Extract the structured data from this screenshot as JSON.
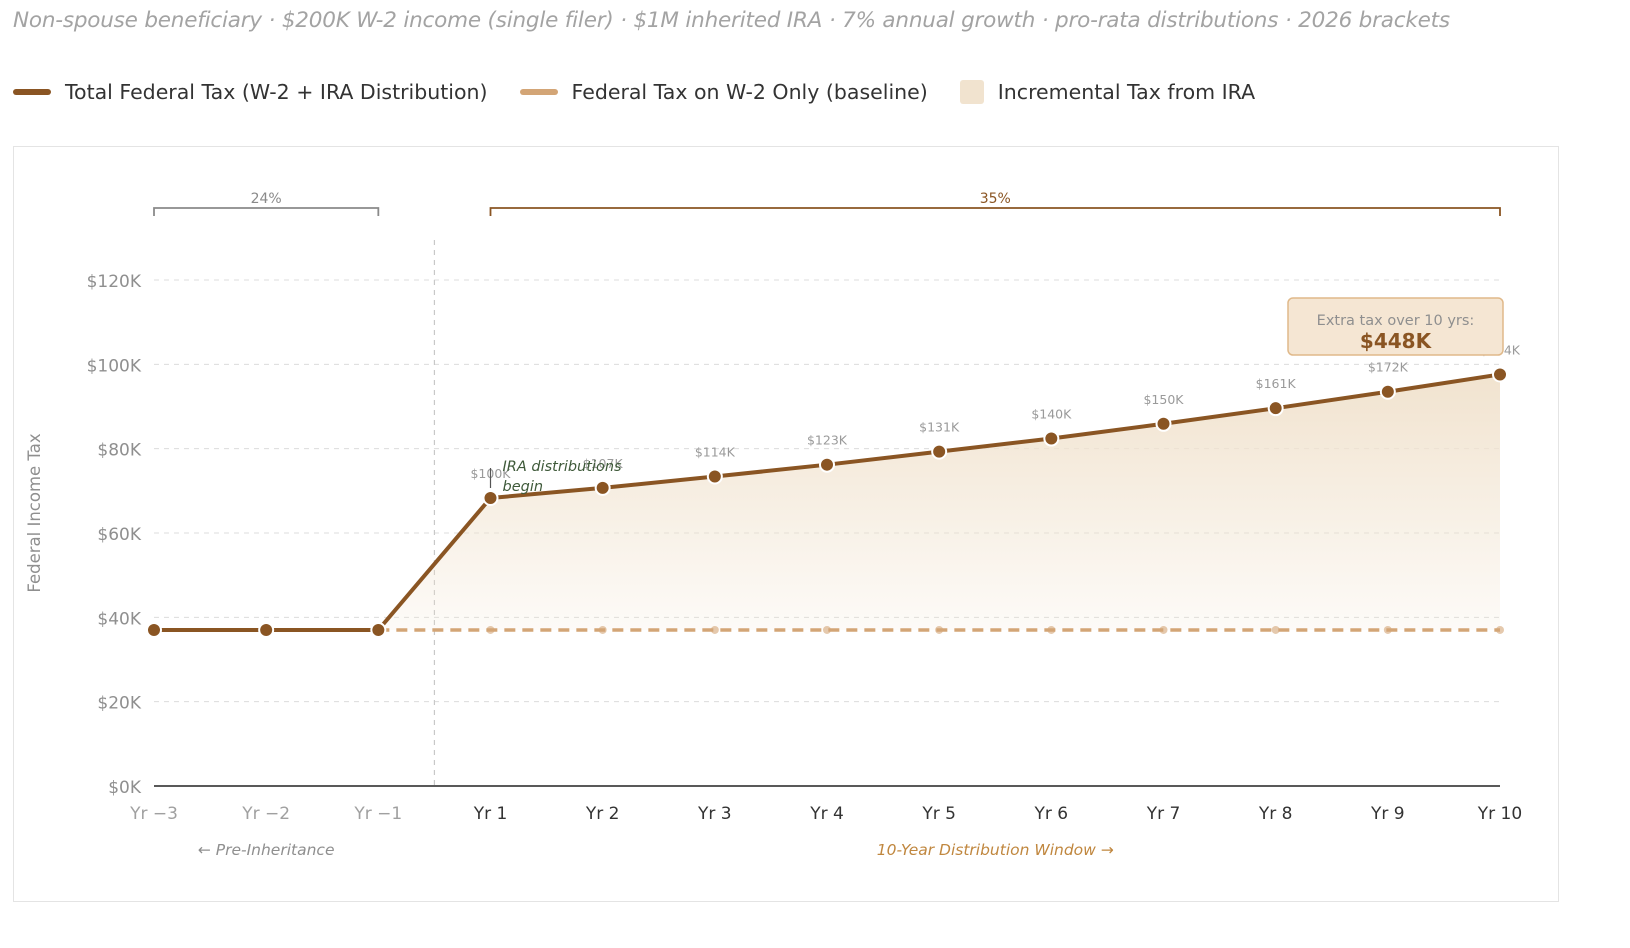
{
  "subtitle": "Non-spouse beneficiary · $200K W-2 income (single filer) · $1M inherited IRA · 7% annual growth · pro-rata distributions · 2026 brackets",
  "legend": [
    {
      "label": "Total Federal Tax (W-2 + IRA Distribution)",
      "color": "#8a5523",
      "kind": "line"
    },
    {
      "label": "Federal Tax on W-2 Only (baseline)",
      "color": "#d3a576",
      "kind": "line"
    },
    {
      "label": "Incremental Tax from IRA",
      "color": "#f1e3cf",
      "kind": "area"
    }
  ],
  "colors": {
    "total": "#8a5523",
    "baseline": "#d3a576",
    "area": "#f1e3cf",
    "bracket_24": "#8a8a8a",
    "bracket_35": "#8a5523",
    "annotation": "#3f5a3a",
    "window_label": "#c0873f",
    "callout_bg": "#f5e6d3",
    "callout_border": "#e0b98a"
  },
  "chart_data": {
    "type": "line",
    "x": [
      "Yr −3",
      "Yr −2",
      "Yr −1",
      "Yr 1",
      "Yr 2",
      "Yr 3",
      "Yr 4",
      "Yr 5",
      "Yr 6",
      "Yr 7",
      "Yr 8",
      "Yr 9",
      "Yr 10"
    ],
    "ylabel": "Federal Income Tax",
    "ylim": [
      0,
      130000
    ],
    "yticks": [
      0,
      20000,
      40000,
      60000,
      80000,
      100000,
      120000
    ],
    "ytick_labels": [
      "$0K",
      "$20K",
      "$40K",
      "$60K",
      "$80K",
      "$100K",
      "$120K"
    ],
    "grid": true,
    "series": [
      {
        "name": "Total Federal Tax (W-2 + IRA Distribution)",
        "values": [
          37000,
          37000,
          37000,
          68300,
          70700,
          73400,
          76200,
          79300,
          82400,
          85900,
          89600,
          93500,
          97600
        ]
      },
      {
        "name": "Federal Tax on W-2 Only (baseline)",
        "values": [
          37000,
          37000,
          37000,
          37000,
          37000,
          37000,
          37000,
          37000,
          37000,
          37000,
          37000,
          37000,
          37000
        ]
      }
    ],
    "point_labels": [
      "",
      "",
      "",
      "$100K",
      "$107K",
      "$114K",
      "$123K",
      "$131K",
      "$140K",
      "$150K",
      "$161K",
      "$172K",
      "$184K"
    ],
    "brackets": [
      {
        "label": "24%",
        "from": "Yr −3",
        "to": "Yr −1"
      },
      {
        "label": "35%",
        "from": "Yr 1",
        "to": "Yr 10"
      }
    ],
    "annotation": "IRA distributions begin",
    "region_labels": [
      "← Pre-Inheritance",
      "10-Year Distribution Window →"
    ],
    "callout": {
      "title": "Extra tax over 10 yrs:",
      "value": "$448K"
    }
  }
}
